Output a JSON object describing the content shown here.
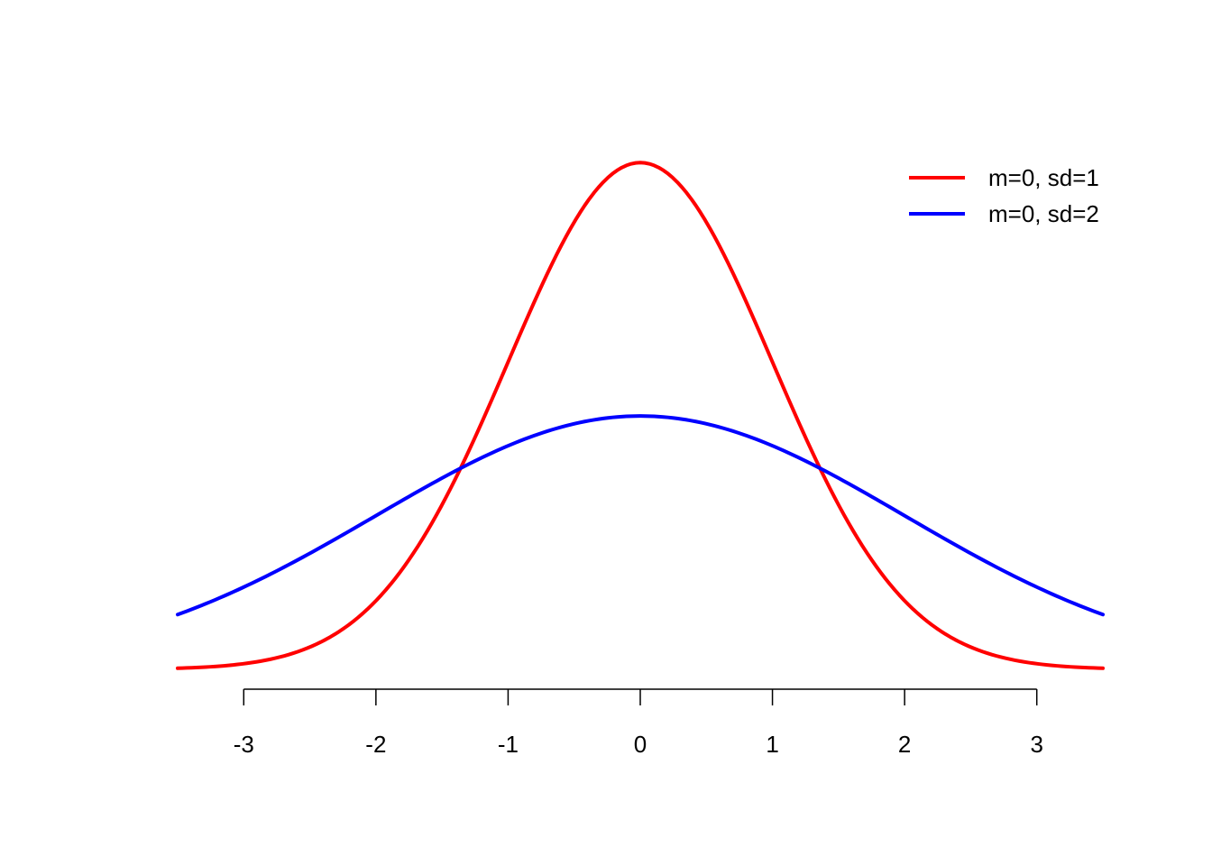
{
  "chart_data": {
    "type": "line",
    "title": "",
    "xlabel": "",
    "ylabel": "",
    "xlim": [
      -3.5,
      3.5
    ],
    "ylim": [
      0,
      0.4
    ],
    "x_ticks": [
      -3,
      -2,
      -1,
      0,
      1,
      2,
      3
    ],
    "x_tick_labels": [
      "-3",
      "-2",
      "-1",
      "0",
      "1",
      "2",
      "3"
    ],
    "y_axis_shown": false,
    "grid": false,
    "legend": {
      "position": "top-right",
      "entries": [
        "m=0, sd=1",
        "m=0, sd=2"
      ]
    },
    "series": [
      {
        "name": "m=0, sd=1",
        "color": "#ff0000",
        "distribution": "normal",
        "mean": 0,
        "sd": 1,
        "x": [
          -3.5,
          -3.0,
          -2.5,
          -2.0,
          -1.5,
          -1.0,
          -0.5,
          0.0,
          0.5,
          1.0,
          1.5,
          2.0,
          2.5,
          3.0,
          3.5
        ],
        "values": [
          0.0009,
          0.0044,
          0.0175,
          0.054,
          0.1295,
          0.242,
          0.3521,
          0.3989,
          0.3521,
          0.242,
          0.1295,
          0.054,
          0.0175,
          0.0044,
          0.0009
        ]
      },
      {
        "name": "m=0, sd=2",
        "color": "#0000ff",
        "distribution": "normal",
        "mean": 0,
        "sd": 2,
        "x": [
          -3.5,
          -3.0,
          -2.5,
          -2.0,
          -1.5,
          -1.0,
          -0.5,
          0.0,
          0.5,
          1.0,
          1.5,
          2.0,
          2.5,
          3.0,
          3.5
        ],
        "values": [
          0.0431,
          0.0648,
          0.0913,
          0.121,
          0.1506,
          0.176,
          0.1933,
          0.1995,
          0.1933,
          0.176,
          0.1506,
          0.121,
          0.0913,
          0.0648,
          0.0431
        ]
      }
    ]
  }
}
